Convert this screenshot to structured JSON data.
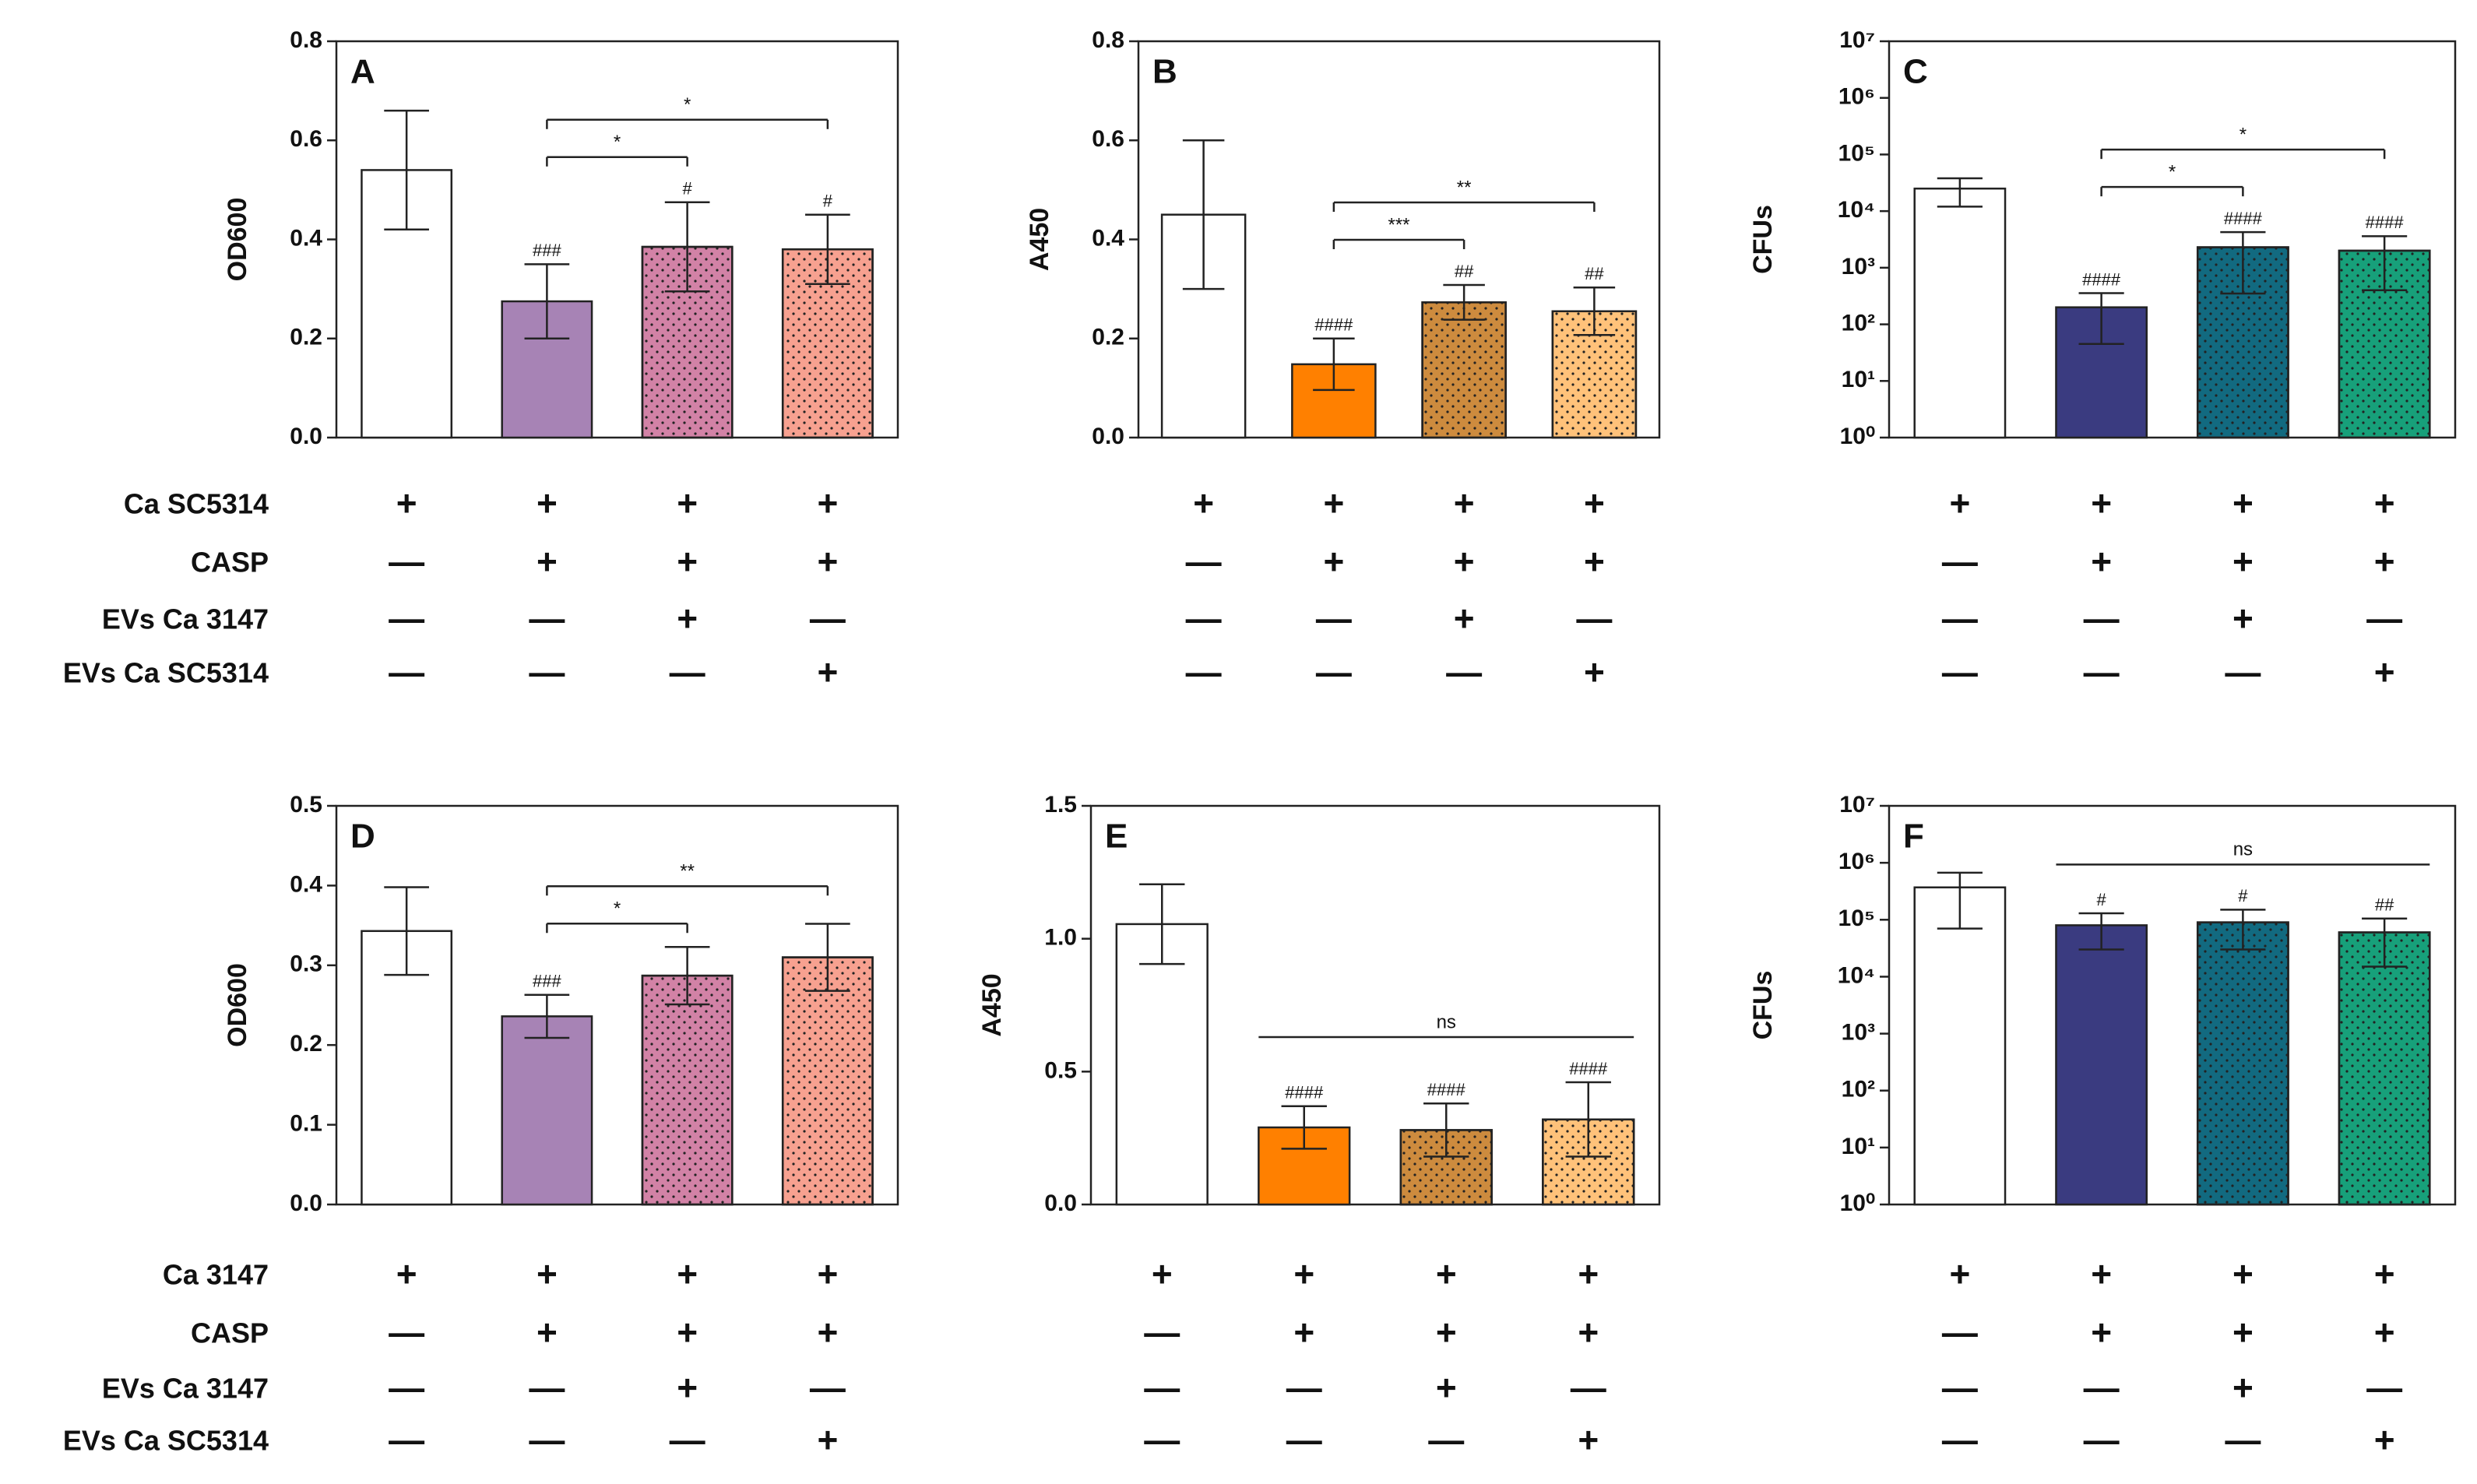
{
  "chart_data": [
    {
      "type": "bar",
      "panel": "A",
      "ylabel": "OD600",
      "ylim": [
        0,
        0.8
      ],
      "yticks": [
        {
          "value": 0,
          "label": "0.0"
        },
        0.2,
        0.4,
        0.6,
        0.8
      ],
      "values": [
        0.54,
        0.275,
        0.385,
        0.38
      ],
      "errors": [
        0.12,
        0.075,
        0.09,
        0.07
      ],
      "colors": [
        "#ffffff",
        "#a783b5",
        "#d282a6",
        "#f7a190"
      ],
      "dotted": [
        false,
        false,
        true,
        true
      ],
      "significance": [
        null,
        "###",
        "#",
        "#"
      ],
      "brackets": [
        {
          "from": 1,
          "to": 2,
          "label": "*"
        },
        {
          "from": 1,
          "to": 3,
          "label": "*"
        }
      ],
      "bracket_ends": true,
      "row_labels": [
        "Ca SC5314",
        "CASP",
        "EVs Ca 3147",
        "EVs Ca SC5314"
      ],
      "conditions": [
        [
          "+",
          "+",
          "+",
          "+"
        ],
        [
          "—",
          "+",
          "+",
          "+"
        ],
        [
          "—",
          "—",
          "+",
          "—"
        ],
        [
          "—",
          "—",
          "—",
          "+"
        ]
      ]
    },
    {
      "type": "bar",
      "panel": "B",
      "ylabel": "A450",
      "ylim": [
        0,
        0.8
      ],
      "yticks": [
        {
          "value": 0,
          "label": "0.0"
        },
        0.2,
        0.4,
        0.6,
        0.8
      ],
      "values": [
        0.45,
        0.148,
        0.273,
        0.255
      ],
      "errors": [
        0.15,
        0.052,
        0.035,
        0.048
      ],
      "colors": [
        "#ffffff",
        "#ff8000",
        "#cd8b3e",
        "#ffc27a"
      ],
      "dotted": [
        false,
        false,
        true,
        true
      ],
      "significance": [
        null,
        "####",
        "##",
        "##"
      ],
      "brackets": [
        {
          "from": 1,
          "to": 2,
          "label": "***"
        },
        {
          "from": 1,
          "to": 3,
          "label": "**"
        }
      ],
      "bracket_ends": true,
      "conditions": [
        [
          "+",
          "+",
          "+",
          "+"
        ],
        [
          "—",
          "+",
          "+",
          "+"
        ],
        [
          "—",
          "—",
          "+",
          "—"
        ],
        [
          "—",
          "—",
          "—",
          "+"
        ]
      ]
    },
    {
      "type": "bar",
      "panel": "C",
      "ylabel": "CFUs",
      "log": true,
      "ylim": [
        1,
        10000000
      ],
      "yticks": [
        {
          "value": 1,
          "label": "10⁰"
        },
        {
          "value": 10,
          "label": "10¹"
        },
        {
          "value": 100,
          "label": "10²"
        },
        {
          "value": 1000,
          "label": "10³"
        },
        {
          "value": 10000,
          "label": "10⁴"
        },
        {
          "value": 100000,
          "label": "10⁵"
        },
        {
          "value": 1000000,
          "label": "10⁶"
        },
        {
          "value": 10000000,
          "label": "10⁷"
        }
      ],
      "values": [
        25000,
        200,
        2300,
        2000
      ],
      "errors": [
        13000,
        155,
        1950,
        1600
      ],
      "colors": [
        "#ffffff",
        "#3a3b80",
        "#126a80",
        "#17a07a"
      ],
      "dotted": [
        false,
        false,
        true,
        true
      ],
      "significance": [
        null,
        "####",
        "####",
        "####"
      ],
      "brackets": [
        {
          "from": 1,
          "to": 2,
          "label": "*"
        },
        {
          "from": 1,
          "to": 3,
          "label": "*"
        }
      ],
      "bracket_ends": true,
      "conditions": [
        [
          "+",
          "+",
          "+",
          "+"
        ],
        [
          "—",
          "+",
          "+",
          "+"
        ],
        [
          "—",
          "—",
          "+",
          "—"
        ],
        [
          "—",
          "—",
          "—",
          "+"
        ]
      ]
    },
    {
      "type": "bar",
      "panel": "D",
      "ylabel": "OD600",
      "ylim": [
        0,
        0.5
      ],
      "yticks": [
        {
          "value": 0,
          "label": "0.0"
        },
        0.1,
        0.2,
        0.3,
        0.4,
        0.5
      ],
      "values": [
        0.343,
        0.236,
        0.287,
        0.31
      ],
      "errors": [
        0.055,
        0.027,
        0.036,
        0.042
      ],
      "colors": [
        "#ffffff",
        "#a783b5",
        "#d282a6",
        "#f7a190"
      ],
      "dotted": [
        false,
        false,
        true,
        true
      ],
      "significance": [
        null,
        "###",
        null,
        null
      ],
      "brackets": [
        {
          "from": 1,
          "to": 2,
          "label": "*"
        },
        {
          "from": 1,
          "to": 3,
          "label": "**"
        }
      ],
      "bracket_ends": true,
      "row_labels": [
        "Ca 3147",
        "CASP",
        "EVs Ca 3147",
        "EVs Ca SC5314"
      ],
      "conditions": [
        [
          "+",
          "+",
          "+",
          "+"
        ],
        [
          "—",
          "+",
          "+",
          "+"
        ],
        [
          "—",
          "—",
          "+",
          "—"
        ],
        [
          "—",
          "—",
          "—",
          "+"
        ]
      ]
    },
    {
      "type": "bar",
      "panel": "E",
      "ylabel": "A450",
      "ylim": [
        0,
        1.5
      ],
      "yticks": [
        {
          "value": 0,
          "label": "0.0"
        },
        0.5,
        {
          "value": 1,
          "label": "1.0"
        },
        1.5
      ],
      "values": [
        1.055,
        0.29,
        0.28,
        0.32
      ],
      "errors": [
        0.15,
        0.08,
        0.1,
        0.14
      ],
      "colors": [
        "#ffffff",
        "#ff8000",
        "#cd8b3e",
        "#ffc27a"
      ],
      "dotted": [
        false,
        false,
        true,
        true
      ],
      "significance": [
        null,
        "####",
        "####",
        "####"
      ],
      "brackets": [
        {
          "from": 1,
          "to": 3,
          "label": "ns"
        }
      ],
      "bracket_ends": false,
      "conditions": [
        [
          "+",
          "+",
          "+",
          "+"
        ],
        [
          "—",
          "+",
          "+",
          "+"
        ],
        [
          "—",
          "—",
          "+",
          "—"
        ],
        [
          "—",
          "—",
          "—",
          "+"
        ]
      ]
    },
    {
      "type": "bar",
      "panel": "F",
      "ylabel": "CFUs",
      "log": true,
      "ylim": [
        1,
        10000000
      ],
      "yticks": [
        {
          "value": 1,
          "label": "10⁰"
        },
        {
          "value": 10,
          "label": "10¹"
        },
        {
          "value": 100,
          "label": "10²"
        },
        {
          "value": 1000,
          "label": "10³"
        },
        {
          "value": 10000,
          "label": "10⁴"
        },
        {
          "value": 100000,
          "label": "10⁵"
        },
        {
          "value": 1000000,
          "label": "10⁶"
        },
        {
          "value": 10000000,
          "label": "10⁷"
        }
      ],
      "values": [
        370000,
        80000,
        90000,
        60000
      ],
      "errors": [
        300000,
        50000,
        60000,
        45000
      ],
      "colors": [
        "#ffffff",
        "#3a3b80",
        "#126a80",
        "#17a07a"
      ],
      "dotted": [
        false,
        false,
        true,
        true
      ],
      "significance": [
        null,
        "#",
        "#",
        "##"
      ],
      "brackets": [
        {
          "from": 1,
          "to": 3,
          "label": "ns"
        }
      ],
      "bracket_ends": false,
      "conditions": [
        [
          "+",
          "+",
          "+",
          "+"
        ],
        [
          "—",
          "+",
          "+",
          "+"
        ],
        [
          "—",
          "—",
          "+",
          "—"
        ],
        [
          "—",
          "—",
          "—",
          "+"
        ]
      ]
    }
  ]
}
